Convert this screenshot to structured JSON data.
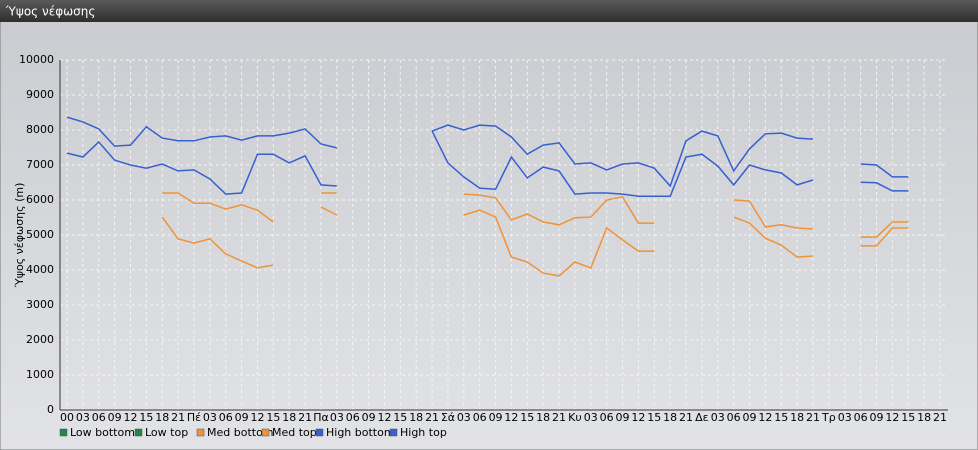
{
  "chart_data": {
    "type": "line",
    "title": "Ύψος νέφωσης",
    "y_label": "Ύψος νέφωσης (m)",
    "categories": [
      "00",
      "03",
      "06",
      "09",
      "12",
      "15",
      "18",
      "21",
      "Πέ",
      "03",
      "06",
      "09",
      "12",
      "15",
      "18",
      "21",
      "Πα",
      "03",
      "06",
      "09",
      "12",
      "15",
      "18",
      "21",
      "Σά",
      "03",
      "06",
      "09",
      "12",
      "15",
      "18",
      "21",
      "Κυ",
      "03",
      "06",
      "09",
      "12",
      "15",
      "18",
      "21",
      "Δε",
      "03",
      "06",
      "09",
      "12",
      "15",
      "18",
      "21",
      "Τρ",
      "03",
      "06",
      "09",
      "12",
      "15",
      "18",
      "21"
    ],
    "ylim": [
      0,
      10000
    ],
    "yticks": [
      0,
      1000,
      2000,
      3000,
      4000,
      5000,
      6000,
      7000,
      8000,
      9000,
      10000
    ],
    "grid": true,
    "series": [
      {
        "name": "Low bottom",
        "color": "#1e8a45",
        "values": [
          null,
          null,
          null,
          null,
          null,
          null,
          null,
          null,
          null,
          null,
          null,
          null,
          null,
          null,
          null,
          null,
          null,
          null,
          null,
          null,
          null,
          null,
          null,
          null,
          null,
          null,
          null,
          null,
          null,
          null,
          null,
          null,
          null,
          null,
          null,
          null,
          null,
          null,
          null,
          null,
          null,
          null,
          null,
          null,
          null,
          null,
          null,
          null,
          null,
          null,
          null,
          null,
          null,
          null,
          null,
          null
        ]
      },
      {
        "name": "Low top",
        "color": "#1e8a45",
        "values": [
          null,
          null,
          null,
          null,
          null,
          null,
          null,
          null,
          null,
          null,
          null,
          null,
          null,
          null,
          null,
          null,
          null,
          null,
          null,
          null,
          null,
          null,
          null,
          null,
          null,
          null,
          null,
          null,
          null,
          null,
          null,
          null,
          null,
          null,
          null,
          null,
          null,
          null,
          null,
          null,
          null,
          null,
          null,
          null,
          null,
          null,
          null,
          null,
          null,
          null,
          null,
          null,
          null,
          null,
          null,
          null
        ]
      },
      {
        "name": "Med bottom",
        "color": "#f0923a",
        "values": [
          null,
          null,
          null,
          null,
          null,
          null,
          5510,
          4890,
          4770,
          4890,
          4460,
          4260,
          4060,
          4140,
          null,
          null,
          5800,
          5570,
          null,
          null,
          null,
          null,
          null,
          null,
          null,
          5570,
          5710,
          5510,
          4370,
          4230,
          3910,
          3830,
          4230,
          4060,
          5200,
          4860,
          4540,
          4540,
          null,
          null,
          null,
          null,
          5510,
          5340,
          4910,
          4710,
          4370,
          4400,
          null,
          null,
          4690,
          4690,
          5200,
          5200,
          null,
          null
        ]
      },
      {
        "name": "Med top",
        "color": "#f0923a",
        "values": [
          null,
          null,
          null,
          null,
          null,
          null,
          6200,
          6200,
          5910,
          5910,
          5740,
          5860,
          5710,
          5370,
          null,
          null,
          6200,
          6200,
          null,
          null,
          null,
          null,
          null,
          null,
          null,
          6170,
          6140,
          6060,
          5430,
          5600,
          5370,
          5290,
          5490,
          5510,
          6000,
          6090,
          5340,
          5340,
          null,
          null,
          null,
          null,
          6000,
          5970,
          5230,
          5290,
          5200,
          5170,
          null,
          null,
          4940,
          4940,
          5370,
          5370,
          null,
          null
        ]
      },
      {
        "name": "High bottom",
        "color": "#3560d0",
        "values": [
          7340,
          7230,
          7660,
          7140,
          7000,
          6910,
          7030,
          6830,
          6860,
          6600,
          6170,
          6200,
          7310,
          7310,
          7060,
          7260,
          6430,
          6400,
          null,
          null,
          null,
          null,
          null,
          7970,
          7060,
          6660,
          6340,
          6310,
          7230,
          6630,
          6940,
          6830,
          6170,
          6200,
          6200,
          6170,
          6110,
          6110,
          6110,
          7230,
          7310,
          6970,
          6430,
          7000,
          6860,
          6770,
          6430,
          6570,
          null,
          null,
          6510,
          6490,
          6260,
          6260,
          null,
          null
        ]
      },
      {
        "name": "High top",
        "color": "#3560d0",
        "values": [
          8370,
          8230,
          8030,
          7540,
          7570,
          8090,
          7770,
          7690,
          7690,
          7800,
          7830,
          7710,
          7830,
          7830,
          7910,
          8030,
          7600,
          7490,
          null,
          null,
          null,
          null,
          null,
          7970,
          8140,
          8000,
          8140,
          8110,
          7800,
          7310,
          7570,
          7630,
          7030,
          7060,
          6860,
          7030,
          7060,
          6910,
          6400,
          7690,
          7970,
          7830,
          6830,
          7460,
          7890,
          7910,
          7770,
          7740,
          null,
          null,
          7030,
          7000,
          6660,
          6660,
          null,
          null
        ]
      }
    ]
  }
}
